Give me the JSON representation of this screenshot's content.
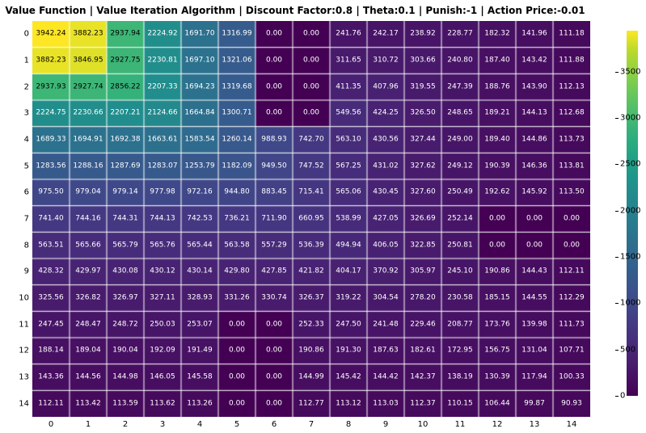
{
  "title": "Value Function | Value Iteration Algorithm | Discount Factor:0.8 | Theta:0.1 | Punish:-1 | Action Price:-0.01",
  "heatmap": {
    "type": "heatmap",
    "rows": 15,
    "cols": 15,
    "xticks": [
      "0",
      "1",
      "2",
      "3",
      "4",
      "5",
      "6",
      "7",
      "8",
      "9",
      "10",
      "11",
      "12",
      "13",
      "14"
    ],
    "yticks": [
      "0",
      "1",
      "2",
      "3",
      "4",
      "5",
      "6",
      "7",
      "8",
      "9",
      "10",
      "11",
      "12",
      "13",
      "14"
    ],
    "label_fontsize": 9,
    "tick_fontsize": 10,
    "title_fontsize": 12,
    "data": [
      [
        3942.24,
        3882.23,
        2937.94,
        2224.92,
        1691.7,
        1316.99,
        0.0,
        0.0,
        241.76,
        242.17,
        238.92,
        228.77,
        182.32,
        141.96,
        111.18
      ],
      [
        3882.23,
        3846.95,
        2927.75,
        2230.81,
        1697.1,
        1321.06,
        0.0,
        0.0,
        311.65,
        310.72,
        303.66,
        240.8,
        187.4,
        143.42,
        111.88
      ],
      [
        2937.93,
        2927.74,
        2856.22,
        2207.33,
        1694.23,
        1319.68,
        0.0,
        0.0,
        411.35,
        407.96,
        319.55,
        247.39,
        188.76,
        143.9,
        112.13
      ],
      [
        2224.75,
        2230.66,
        2207.21,
        2124.66,
        1664.84,
        1300.71,
        0.0,
        0.0,
        549.56,
        424.25,
        326.5,
        248.65,
        189.21,
        144.13,
        112.68
      ],
      [
        1689.33,
        1694.91,
        1692.38,
        1663.61,
        1583.54,
        1260.14,
        988.93,
        742.7,
        563.1,
        430.56,
        327.44,
        249.0,
        189.4,
        144.86,
        113.73
      ],
      [
        1283.56,
        1288.16,
        1287.69,
        1283.07,
        1253.79,
        1182.09,
        949.5,
        747.52,
        567.25,
        431.02,
        327.62,
        249.12,
        190.39,
        146.36,
        113.81
      ],
      [
        975.5,
        979.04,
        979.14,
        977.98,
        972.16,
        944.8,
        883.45,
        715.41,
        565.06,
        430.45,
        327.6,
        250.49,
        192.62,
        145.92,
        113.5
      ],
      [
        741.4,
        744.16,
        744.31,
        744.13,
        742.53,
        736.21,
        711.9,
        660.95,
        538.99,
        427.05,
        326.69,
        252.14,
        0.0,
        0.0,
        0.0
      ],
      [
        563.51,
        565.66,
        565.79,
        565.76,
        565.44,
        563.58,
        557.29,
        536.39,
        494.94,
        406.05,
        322.85,
        250.81,
        0.0,
        0.0,
        0.0
      ],
      [
        428.32,
        429.97,
        430.08,
        430.12,
        430.14,
        429.8,
        427.85,
        421.82,
        404.17,
        370.92,
        305.97,
        245.1,
        190.86,
        144.43,
        112.11
      ],
      [
        325.56,
        326.82,
        326.97,
        327.11,
        328.93,
        331.26,
        330.74,
        326.37,
        319.22,
        304.54,
        278.2,
        230.58,
        185.15,
        144.55,
        112.29
      ],
      [
        247.45,
        248.47,
        248.72,
        250.03,
        253.07,
        0.0,
        0.0,
        252.33,
        247.5,
        241.48,
        229.46,
        208.77,
        173.76,
        139.98,
        111.73
      ],
      [
        188.14,
        189.04,
        190.04,
        192.09,
        191.49,
        0.0,
        0.0,
        190.86,
        191.3,
        187.63,
        182.61,
        172.95,
        156.75,
        131.04,
        107.71
      ],
      [
        143.36,
        144.56,
        144.98,
        146.05,
        145.58,
        0.0,
        0.0,
        144.99,
        145.42,
        144.42,
        142.37,
        138.19,
        130.39,
        117.94,
        100.33
      ],
      [
        112.11,
        113.42,
        113.59,
        113.62,
        113.26,
        0.0,
        0.0,
        112.77,
        113.12,
        113.03,
        112.37,
        110.15,
        106.44,
        99.87,
        90.93
      ]
    ],
    "colormap": "viridis",
    "vmin": 0,
    "vmax": 3942.24,
    "label_color_light": "#ffffff",
    "label_color_dark": "#000000",
    "label_threshold": 2600,
    "grid_line_color": "#ffffff",
    "grid_line_width": 1,
    "background_color": "#ffffff"
  },
  "colorbar": {
    "ticks": [
      0,
      500,
      1000,
      1500,
      2000,
      2500,
      3000,
      3500
    ],
    "vmin": 0,
    "vmax": 3942.24
  },
  "viridis_stops": [
    [
      0.0,
      "#440154"
    ],
    [
      0.05,
      "#471164"
    ],
    [
      0.1,
      "#482071"
    ],
    [
      0.15,
      "#472e7c"
    ],
    [
      0.2,
      "#443b84"
    ],
    [
      0.25,
      "#3f4889"
    ],
    [
      0.3,
      "#3a548c"
    ],
    [
      0.35,
      "#34608d"
    ],
    [
      0.4,
      "#2f6b8e"
    ],
    [
      0.45,
      "#2a768e"
    ],
    [
      0.5,
      "#26818e"
    ],
    [
      0.55,
      "#228b8d"
    ],
    [
      0.6,
      "#1f968b"
    ],
    [
      0.65,
      "#21a186"
    ],
    [
      0.7,
      "#2cac7f"
    ],
    [
      0.75,
      "#3fb775"
    ],
    [
      0.8,
      "#58c166"
    ],
    [
      0.85,
      "#76cb54"
    ],
    [
      0.9,
      "#98d340"
    ],
    [
      0.95,
      "#bcdb2b"
    ],
    [
      1.0,
      "#fde725"
    ]
  ]
}
